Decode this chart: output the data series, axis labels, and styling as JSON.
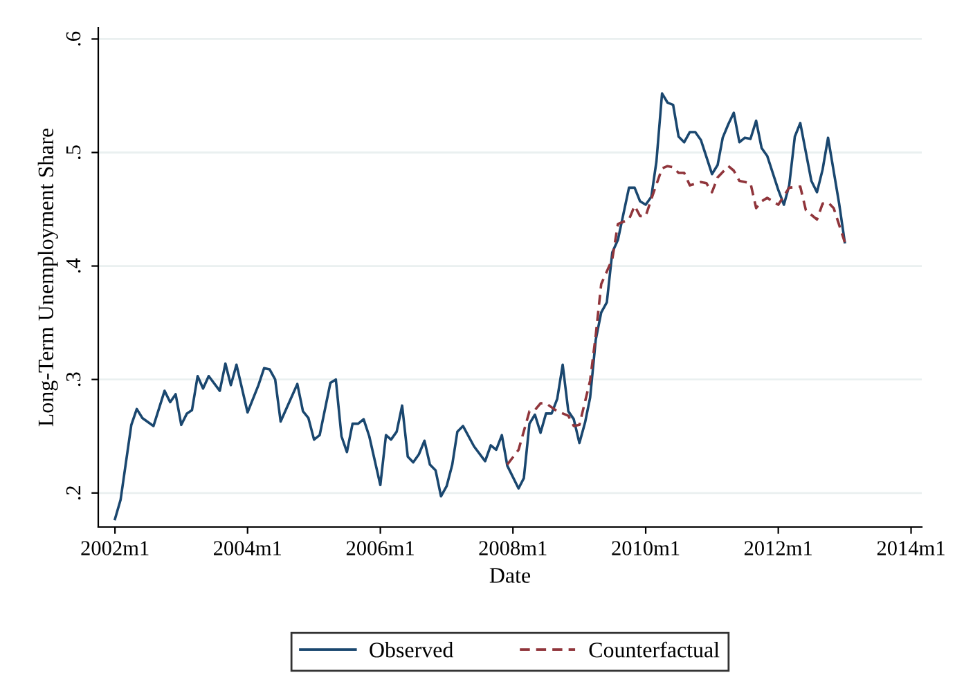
{
  "chart_data": {
    "type": "line",
    "xlabel": "Date",
    "ylabel": "Long-Term Unemployment Share",
    "xlim": [
      "2001-10",
      "2014-03"
    ],
    "ylim": [
      0.17,
      0.61
    ],
    "xticks": [
      {
        "value": "2002-01",
        "label": "2002m1"
      },
      {
        "value": "2004-01",
        "label": "2004m1"
      },
      {
        "value": "2006-01",
        "label": "2006m1"
      },
      {
        "value": "2008-01",
        "label": "2008m1"
      },
      {
        "value": "2010-01",
        "label": "2010m1"
      },
      {
        "value": "2012-01",
        "label": "2012m1"
      },
      {
        "value": "2014-01",
        "label": "2014m1"
      }
    ],
    "yticks": [
      {
        "value": 0.2,
        "label": ".2"
      },
      {
        "value": 0.3,
        "label": ".3"
      },
      {
        "value": 0.4,
        "label": ".4"
      },
      {
        "value": 0.5,
        "label": ".5"
      },
      {
        "value": 0.6,
        "label": ".6"
      }
    ],
    "grid": "y",
    "legend": "bottom",
    "series": [
      {
        "name": "Observed",
        "color": "#1a476f",
        "line_style": "solid",
        "x": [
          "2002-01",
          "2002-02",
          "2002-04",
          "2002-05",
          "2002-06",
          "2002-08",
          "2002-10",
          "2002-11",
          "2002-12",
          "2003-01",
          "2003-02",
          "2003-03",
          "2003-04",
          "2003-05",
          "2003-06",
          "2003-08",
          "2003-09",
          "2003-10",
          "2003-11",
          "2004-01",
          "2004-03",
          "2004-04",
          "2004-05",
          "2004-06",
          "2004-07",
          "2004-10",
          "2004-11",
          "2004-12",
          "2005-01",
          "2005-02",
          "2005-04",
          "2005-05",
          "2005-06",
          "2005-07",
          "2005-08",
          "2005-09",
          "2005-10",
          "2005-11",
          "2006-01",
          "2006-02",
          "2006-03",
          "2006-04",
          "2006-05",
          "2006-06",
          "2006-07",
          "2006-08",
          "2006-09",
          "2006-10",
          "2006-11",
          "2006-12",
          "2007-01",
          "2007-02",
          "2007-03",
          "2007-04",
          "2007-06",
          "2007-08",
          "2007-09",
          "2007-10",
          "2007-11",
          "2007-12",
          "2008-02",
          "2008-03",
          "2008-04",
          "2008-05",
          "2008-06",
          "2008-07",
          "2008-08",
          "2008-09",
          "2008-10",
          "2008-11",
          "2008-12",
          "2009-01",
          "2009-02",
          "2009-03",
          "2009-04",
          "2009-05",
          "2009-06",
          "2009-07",
          "2009-08",
          "2009-10",
          "2009-11",
          "2009-12",
          "2010-01",
          "2010-02",
          "2010-03",
          "2010-04",
          "2010-05",
          "2010-06",
          "2010-07",
          "2010-08",
          "2010-09",
          "2010-10",
          "2010-11",
          "2011-01",
          "2011-02",
          "2011-03",
          "2011-04",
          "2011-05",
          "2011-06",
          "2011-07",
          "2011-08",
          "2011-09",
          "2011-10",
          "2011-11",
          "2012-01",
          "2012-02",
          "2012-03",
          "2012-04",
          "2012-05",
          "2012-07",
          "2012-08",
          "2012-09",
          "2012-10",
          "2012-12",
          "2013-01"
        ],
        "values": [
          0.177,
          0.194,
          0.26,
          0.274,
          0.266,
          0.259,
          0.29,
          0.28,
          0.287,
          0.26,
          0.27,
          0.273,
          0.303,
          0.292,
          0.303,
          0.29,
          0.314,
          0.295,
          0.313,
          0.271,
          0.295,
          0.31,
          0.309,
          0.3,
          0.263,
          0.296,
          0.272,
          0.266,
          0.247,
          0.251,
          0.297,
          0.3,
          0.25,
          0.236,
          0.261,
          0.261,
          0.265,
          0.25,
          0.207,
          0.251,
          0.247,
          0.254,
          0.277,
          0.232,
          0.227,
          0.234,
          0.246,
          0.225,
          0.22,
          0.197,
          0.206,
          0.225,
          0.254,
          0.259,
          0.241,
          0.228,
          0.242,
          0.238,
          0.251,
          0.224,
          0.204,
          0.213,
          0.261,
          0.269,
          0.253,
          0.27,
          0.27,
          0.283,
          0.313,
          0.272,
          0.265,
          0.244,
          0.262,
          0.284,
          0.335,
          0.359,
          0.368,
          0.412,
          0.423,
          0.469,
          0.469,
          0.457,
          0.454,
          0.461,
          0.492,
          0.552,
          0.544,
          0.542,
          0.514,
          0.509,
          0.518,
          0.518,
          0.511,
          0.481,
          0.489,
          0.513,
          0.525,
          0.535,
          0.509,
          0.513,
          0.512,
          0.528,
          0.504,
          0.497,
          0.467,
          0.454,
          0.471,
          0.514,
          0.526,
          0.475,
          0.465,
          0.485,
          0.513,
          0.455,
          0.421
        ]
      },
      {
        "name": "Counterfactual",
        "color": "#90353b",
        "line_style": "dashed",
        "x": [
          "2007-12",
          "2008-02",
          "2008-04",
          "2008-05",
          "2008-06",
          "2008-07",
          "2008-09",
          "2008-11",
          "2008-12",
          "2009-01",
          "2009-03",
          "2009-04",
          "2009-05",
          "2009-07",
          "2009-08",
          "2009-10",
          "2009-11",
          "2009-12",
          "2010-01",
          "2010-02",
          "2010-04",
          "2010-05",
          "2010-06",
          "2010-07",
          "2010-08",
          "2010-09",
          "2010-11",
          "2010-12",
          "2011-01",
          "2011-02",
          "2011-04",
          "2011-05",
          "2011-06",
          "2011-08",
          "2011-09",
          "2011-10",
          "2011-11",
          "2012-01",
          "2012-03",
          "2012-05",
          "2012-06",
          "2012-08",
          "2012-09",
          "2012-10",
          "2012-11",
          "2013-01"
        ],
        "values": [
          0.225,
          0.238,
          0.272,
          0.273,
          0.279,
          0.279,
          0.272,
          0.268,
          0.259,
          0.26,
          0.299,
          0.339,
          0.384,
          0.406,
          0.437,
          0.441,
          0.453,
          0.444,
          0.444,
          0.459,
          0.486,
          0.488,
          0.487,
          0.482,
          0.482,
          0.471,
          0.474,
          0.473,
          0.465,
          0.478,
          0.488,
          0.484,
          0.475,
          0.473,
          0.451,
          0.457,
          0.46,
          0.454,
          0.469,
          0.47,
          0.449,
          0.441,
          0.455,
          0.456,
          0.451,
          0.421
        ]
      }
    ]
  }
}
